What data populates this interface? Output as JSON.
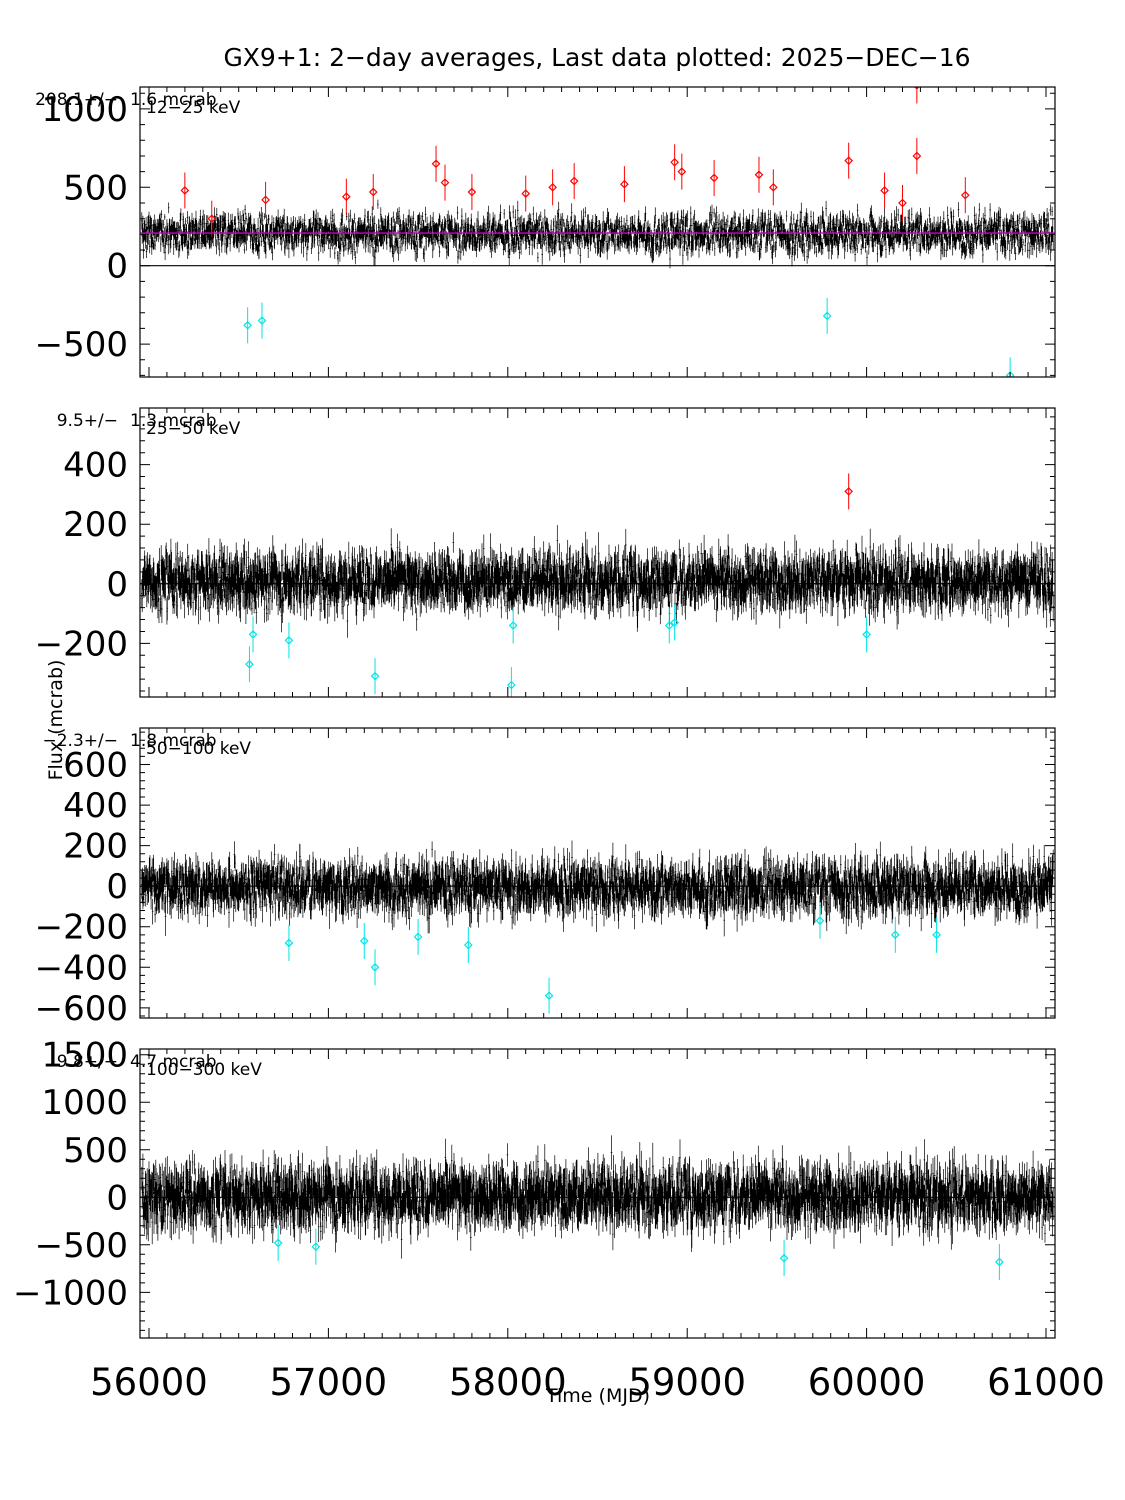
{
  "title": "GX9+1:  2−day averages,  Last data plotted: 2025−DEC−16",
  "xlabel": "Time (MJD)",
  "ylabel": "Flux (mcrab)",
  "colors": {
    "data": "#000000",
    "high": "#ff0000",
    "low": "#00e5e5",
    "mean_line": "#cc00cc"
  },
  "chart_data": [
    {
      "type": "scatter",
      "band": "12−25 keV",
      "mean_label": "208.1+/−",
      "err_label": "1.6 mcrab",
      "xlim": [
        55950,
        61050
      ],
      "ylim": [
        -710,
        1140
      ],
      "yticks": [
        -500,
        0,
        500,
        1000
      ],
      "ytick_labels": [
        "−500",
        "0",
        "500",
        "1000"
      ],
      "mean": 208.1,
      "noise_sd": 110,
      "err_sd": 45,
      "high_points": [
        {
          "x": 56200,
          "y": 480
        },
        {
          "x": 56350,
          "y": 300
        },
        {
          "x": 56650,
          "y": 420
        },
        {
          "x": 57100,
          "y": 440
        },
        {
          "x": 57250,
          "y": 470
        },
        {
          "x": 57600,
          "y": 650
        },
        {
          "x": 57650,
          "y": 530
        },
        {
          "x": 57800,
          "y": 470
        },
        {
          "x": 58100,
          "y": 460
        },
        {
          "x": 58250,
          "y": 500
        },
        {
          "x": 58370,
          "y": 540
        },
        {
          "x": 58650,
          "y": 520
        },
        {
          "x": 58930,
          "y": 660
        },
        {
          "x": 58970,
          "y": 600
        },
        {
          "x": 59150,
          "y": 560
        },
        {
          "x": 59400,
          "y": 580
        },
        {
          "x": 59480,
          "y": 500
        },
        {
          "x": 59900,
          "y": 670
        },
        {
          "x": 60100,
          "y": 480
        },
        {
          "x": 60200,
          "y": 400
        },
        {
          "x": 60280,
          "y": 700
        },
        {
          "x": 60280,
          "y": 1150
        },
        {
          "x": 60550,
          "y": 450
        }
      ],
      "low_points": [
        {
          "x": 56550,
          "y": -380
        },
        {
          "x": 56630,
          "y": -350
        },
        {
          "x": 59780,
          "y": -320
        },
        {
          "x": 60800,
          "y": -700
        }
      ]
    },
    {
      "type": "scatter",
      "band": "25−50 keV",
      "mean_label": "9.5+/−",
      "err_label": "1.3 mcrab",
      "xlim": [
        55950,
        61050
      ],
      "ylim": [
        -380,
        590
      ],
      "yticks": [
        -200,
        0,
        200,
        400
      ],
      "ytick_labels": [
        "−200",
        "0",
        "200",
        "400"
      ],
      "mean": 9.5,
      "noise_sd": 80,
      "err_sd": 45,
      "high_points": [
        {
          "x": 59900,
          "y": 310
        }
      ],
      "low_points": [
        {
          "x": 56560,
          "y": -270
        },
        {
          "x": 56580,
          "y": -170
        },
        {
          "x": 56780,
          "y": -190
        },
        {
          "x": 57260,
          "y": -310
        },
        {
          "x": 58020,
          "y": -340
        },
        {
          "x": 58030,
          "y": -140
        },
        {
          "x": 58900,
          "y": -140
        },
        {
          "x": 58930,
          "y": -130
        },
        {
          "x": 60000,
          "y": -170
        }
      ]
    },
    {
      "type": "scatter",
      "band": "50−100 keV",
      "mean_label": "−2.3+/−",
      "err_label": "1.8 mcrab",
      "xlim": [
        55950,
        61050
      ],
      "ylim": [
        -650,
        780
      ],
      "yticks": [
        -600,
        -400,
        -200,
        0,
        200,
        400,
        600
      ],
      "ytick_labels": [
        "−600",
        "−400",
        "−200",
        "0",
        "200",
        "400",
        "600"
      ],
      "mean": -2.3,
      "noise_sd": 110,
      "err_sd": 60,
      "high_points": [],
      "low_points": [
        {
          "x": 56780,
          "y": -280
        },
        {
          "x": 57200,
          "y": -270
        },
        {
          "x": 57260,
          "y": -400
        },
        {
          "x": 57500,
          "y": -250
        },
        {
          "x": 57780,
          "y": -290
        },
        {
          "x": 58230,
          "y": -540
        },
        {
          "x": 59740,
          "y": -170
        },
        {
          "x": 60160,
          "y": -240
        },
        {
          "x": 60390,
          "y": -240
        }
      ]
    },
    {
      "type": "scatter",
      "band": "100−300 keV",
      "mean_label": "9.8+/−",
      "err_label": "4.7 mcrab",
      "xlim": [
        55950,
        61050
      ],
      "ylim": [
        -1480,
        1560
      ],
      "yticks": [
        -1000,
        -500,
        0,
        500,
        1000,
        1500
      ],
      "ytick_labels": [
        "−1000",
        "−500",
        "0",
        "500",
        "1000",
        "1500"
      ],
      "mean": 9.8,
      "noise_sd": 270,
      "err_sd": 160,
      "high_points": [],
      "low_points": [
        {
          "x": 56720,
          "y": -480
        },
        {
          "x": 56930,
          "y": -520
        },
        {
          "x": 59540,
          "y": -640
        },
        {
          "x": 60740,
          "y": -680
        }
      ]
    }
  ],
  "xticks": [
    56000,
    57000,
    58000,
    59000,
    60000,
    61000
  ],
  "xtick_labels": [
    "56000",
    "57000",
    "58000",
    "59000",
    "60000",
    "61000"
  ]
}
